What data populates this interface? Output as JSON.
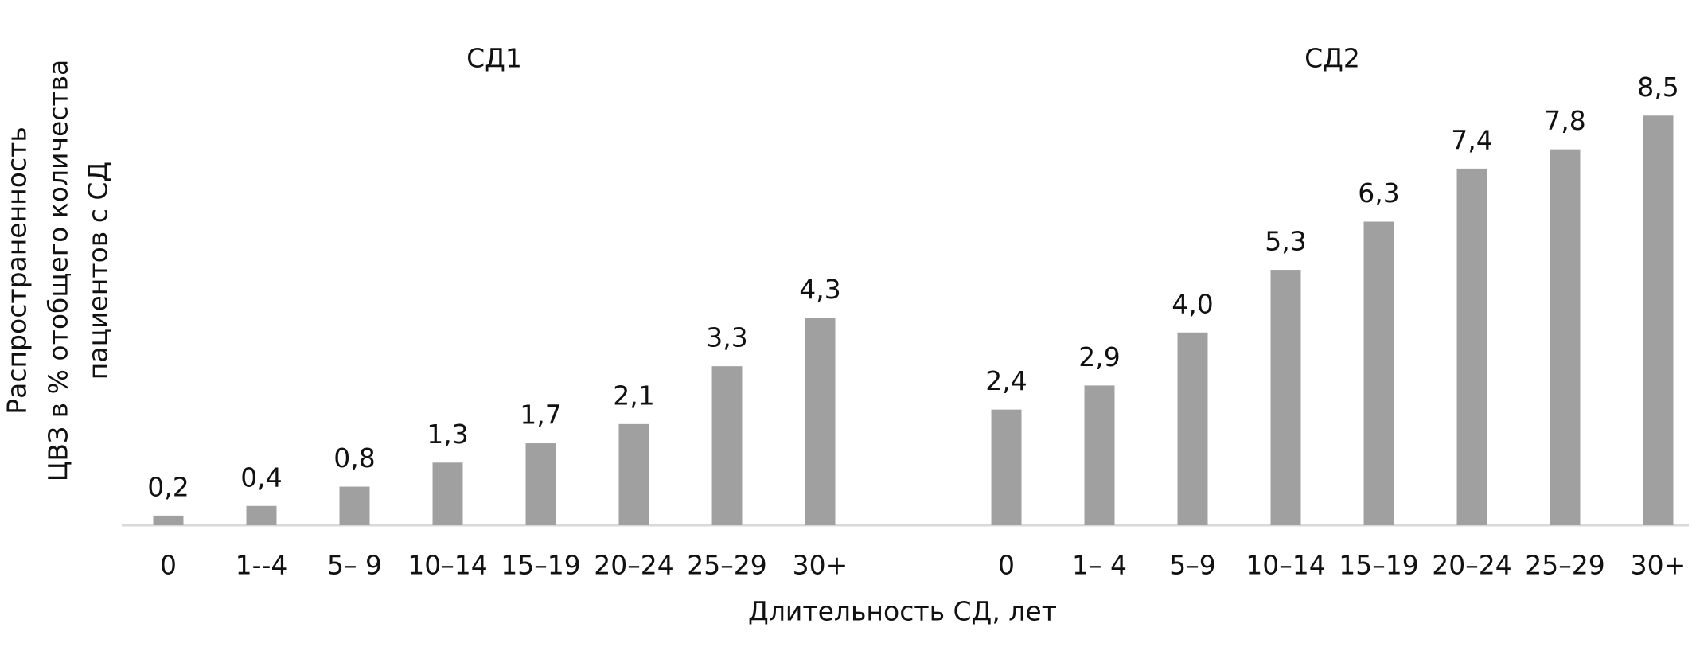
{
  "chart_data": {
    "type": "bar",
    "x_label": "Длительность СД, лет",
    "y_label": [
      "Распространенность",
      "ЦВЗ в % отобщего количества",
      "пациентов с СД"
    ],
    "color": "#a0a0a0",
    "ylim": [
      0,
      9
    ],
    "groups": [
      {
        "name": "СД1",
        "categories": [
          "0",
          "1--4",
          "5– 9",
          "10–14",
          "15–19",
          "20–24",
          "25–29",
          "30+"
        ],
        "values": [
          0.2,
          0.4,
          0.8,
          1.3,
          1.7,
          2.1,
          3.3,
          4.3
        ],
        "value_labels": [
          "0,2",
          "0,4",
          "0,8",
          "1,3",
          "1,7",
          "2,1",
          "3,3",
          "4,3"
        ]
      },
      {
        "name": "СД2",
        "categories": [
          "0",
          "1– 4",
          "5–9",
          "10–14",
          "15–19",
          "20–24",
          "25–29",
          "30+"
        ],
        "values": [
          2.4,
          2.9,
          4.0,
          5.3,
          6.3,
          7.4,
          7.8,
          8.5
        ],
        "value_labels": [
          "2,4",
          "2,9",
          "4,0",
          "5,3",
          "6,3",
          "7,4",
          "7,8",
          "8,5"
        ]
      }
    ]
  }
}
